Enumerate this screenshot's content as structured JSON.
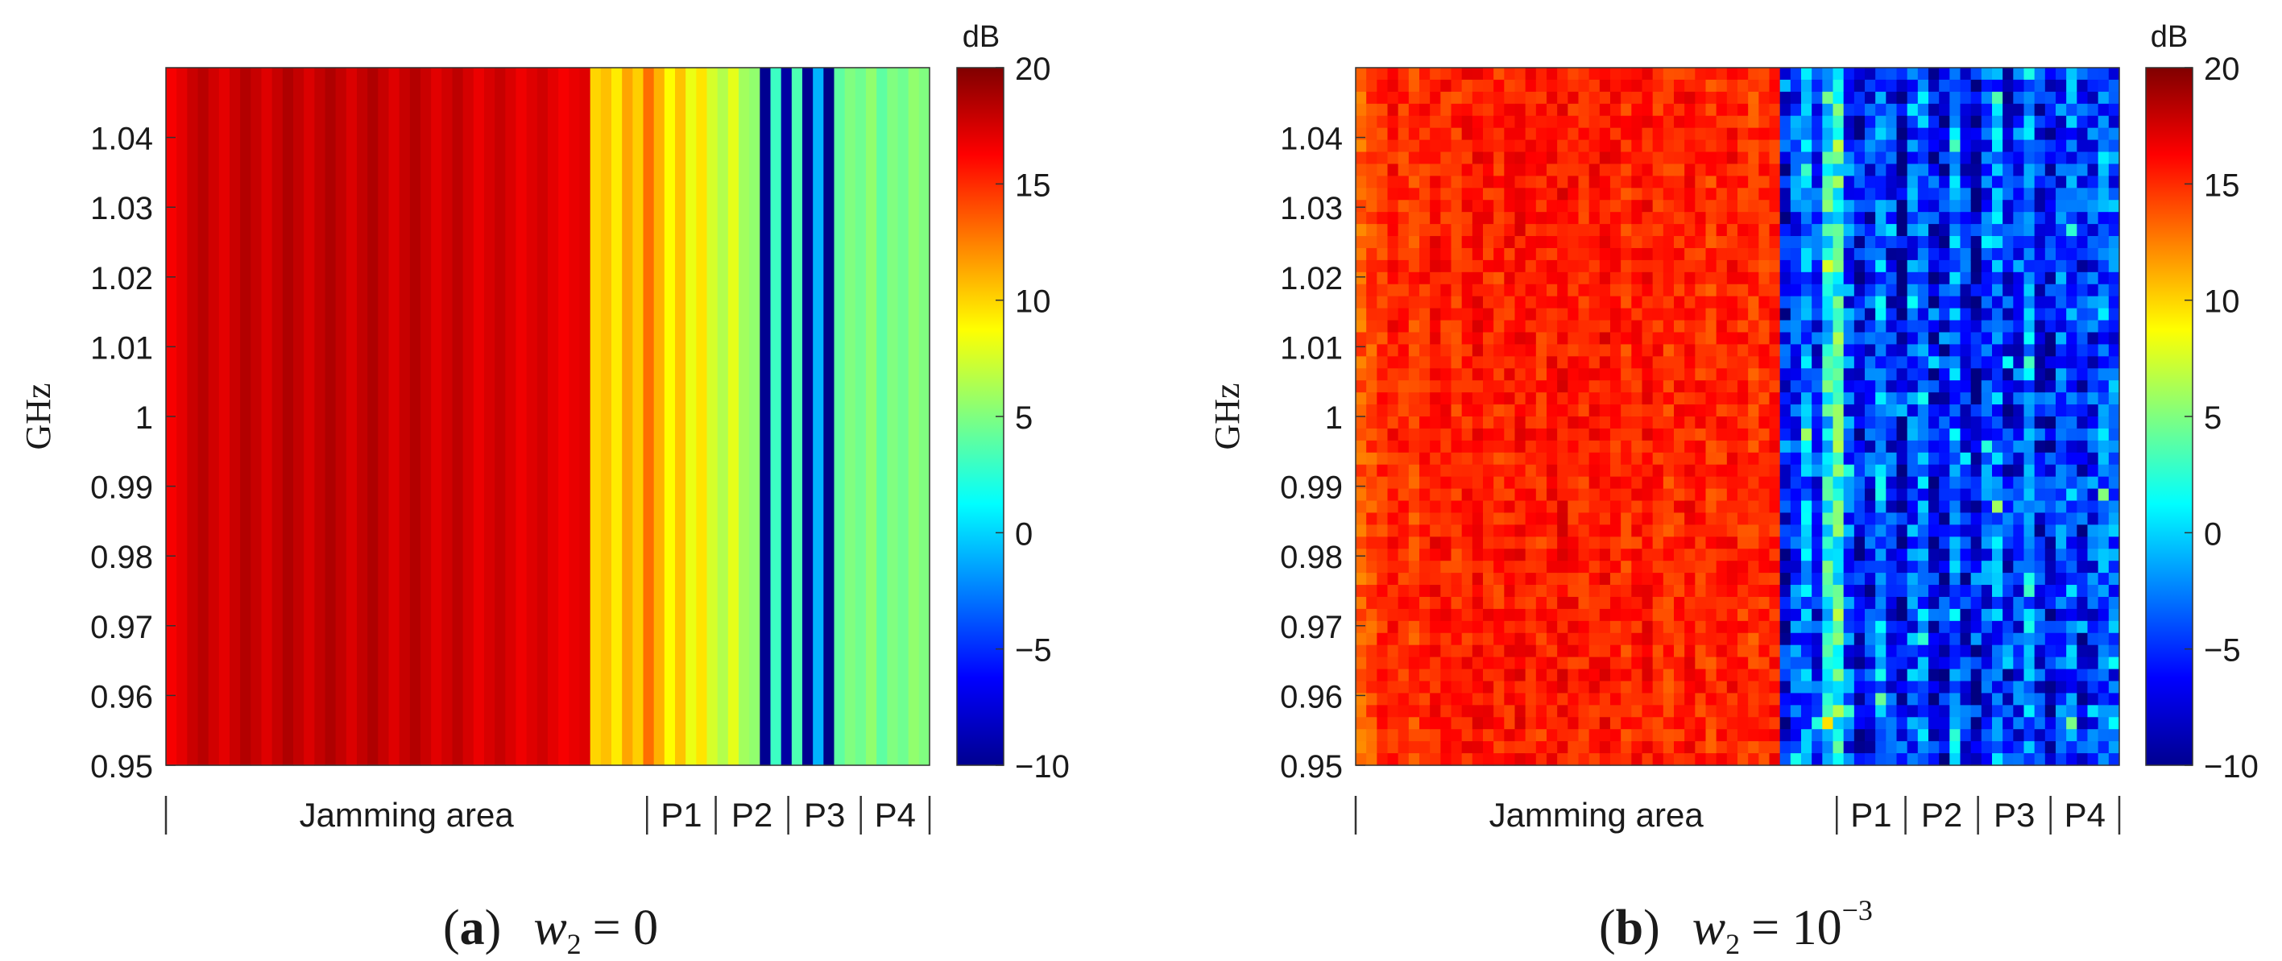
{
  "chart_data": [
    {
      "panel": "(a)",
      "type": "heatmap",
      "caption": {
        "letter": "a",
        "var": "w",
        "sub": "2",
        "eq": "= 0",
        "sup": ""
      },
      "ylabel": "GHz",
      "ylim": [
        0.95,
        1.05
      ],
      "yticks": [
        "1.04",
        "1.03",
        "1.02",
        "1.01",
        "1",
        "0.99",
        "0.98",
        "0.97",
        "0.96",
        "0.95"
      ],
      "ytick_values": [
        1.04,
        1.03,
        1.02,
        1.01,
        1.0,
        0.99,
        0.98,
        0.97,
        0.96,
        0.95
      ],
      "colorbar": {
        "unit": "dB",
        "range": [
          -10,
          20
        ],
        "ticks": [
          "20",
          "15",
          "10",
          "5",
          "0",
          "−5",
          "−10"
        ],
        "tick_values": [
          20,
          15,
          10,
          5,
          0,
          -5,
          -10
        ]
      },
      "x_regions": [
        {
          "label": "Jamming area",
          "start": 0.0,
          "end": 0.63
        },
        {
          "label": "P1",
          "start": 0.63,
          "end": 0.72
        },
        {
          "label": "P2",
          "start": 0.72,
          "end": 0.815
        },
        {
          "label": "P3",
          "start": 0.815,
          "end": 0.91
        },
        {
          "label": "P4",
          "start": 0.91,
          "end": 1.0
        }
      ],
      "column_values_db": [
        16.5,
        17.0,
        17.8,
        18.3,
        17.6,
        17.0,
        17.8,
        18.5,
        17.9,
        17.2,
        17.9,
        18.6,
        18.0,
        17.3,
        18.0,
        18.6,
        18.0,
        17.3,
        18.0,
        18.6,
        17.9,
        17.2,
        17.9,
        18.5,
        17.8,
        17.1,
        17.6,
        18.2,
        17.5,
        16.8,
        17.4,
        17.9,
        17.3,
        16.7,
        17.2,
        17.6,
        17.0,
        16.5,
        16.9,
        17.2,
        10.0,
        10.6,
        9.3,
        11.4,
        10.2,
        13.0,
        11.0,
        8.8,
        10.5,
        8.2,
        9.5,
        7.5,
        6.5,
        8.0,
        6.0,
        5.5,
        -9.5,
        3.0,
        -9.0,
        3.5,
        -9.5,
        -1.0,
        -9.8,
        4.0,
        5.0,
        4.5,
        5.5,
        4.0,
        5.0,
        4.5,
        5.5,
        5.0
      ],
      "noise": "low"
    },
    {
      "panel": "(b)",
      "type": "heatmap",
      "caption": {
        "letter": "b",
        "var": "w",
        "sub": "2",
        "eq": "= 10",
        "sup": "−3"
      },
      "ylabel": "GHz",
      "ylim": [
        0.95,
        1.05
      ],
      "yticks": [
        "1.04",
        "1.03",
        "1.02",
        "1.01",
        "1",
        "0.99",
        "0.98",
        "0.97",
        "0.96",
        "0.95"
      ],
      "ytick_values": [
        1.04,
        1.03,
        1.02,
        1.01,
        1.0,
        0.99,
        0.98,
        0.97,
        0.96,
        0.95
      ],
      "colorbar": {
        "unit": "dB",
        "range": [
          -10,
          20
        ],
        "ticks": [
          "20",
          "15",
          "10",
          "5",
          "0",
          "−5",
          "−10"
        ],
        "tick_values": [
          20,
          15,
          10,
          5,
          0,
          -5,
          -10
        ]
      },
      "x_regions": [
        {
          "label": "Jamming area",
          "start": 0.0,
          "end": 0.63
        },
        {
          "label": "P1",
          "start": 0.63,
          "end": 0.72
        },
        {
          "label": "P2",
          "start": 0.72,
          "end": 0.815
        },
        {
          "label": "P3",
          "start": 0.815,
          "end": 0.91
        },
        {
          "label": "P4",
          "start": 0.91,
          "end": 1.0
        }
      ],
      "column_values_db": [
        13.5,
        14.2,
        15.0,
        15.5,
        15.0,
        14.6,
        15.3,
        15.8,
        15.4,
        15.0,
        15.6,
        16.0,
        15.5,
        15.1,
        15.6,
        16.0,
        15.6,
        15.2,
        15.7,
        16.1,
        15.6,
        15.1,
        15.6,
        16.0,
        15.5,
        15.0,
        15.4,
        15.9,
        15.3,
        14.9,
        15.3,
        15.7,
        15.2,
        14.8,
        15.2,
        15.6,
        15.1,
        14.6,
        15.0,
        15.4,
        -6.5,
        -4.0,
        -2.5,
        -5.5,
        1.5,
        3.0,
        -4.5,
        -7.0,
        -6.0,
        -2.0,
        -5.5,
        -7.5,
        -4.0,
        -3.0,
        -7.0,
        -6.5,
        -2.5,
        -6.0,
        -7.5,
        -4.5,
        -3.0,
        -6.5,
        -5.0,
        -2.0,
        -6.0,
        -7.0,
        -4.5,
        -3.5,
        -6.0,
        -5.0,
        -3.0,
        -4.0
      ],
      "noise": "high"
    }
  ]
}
